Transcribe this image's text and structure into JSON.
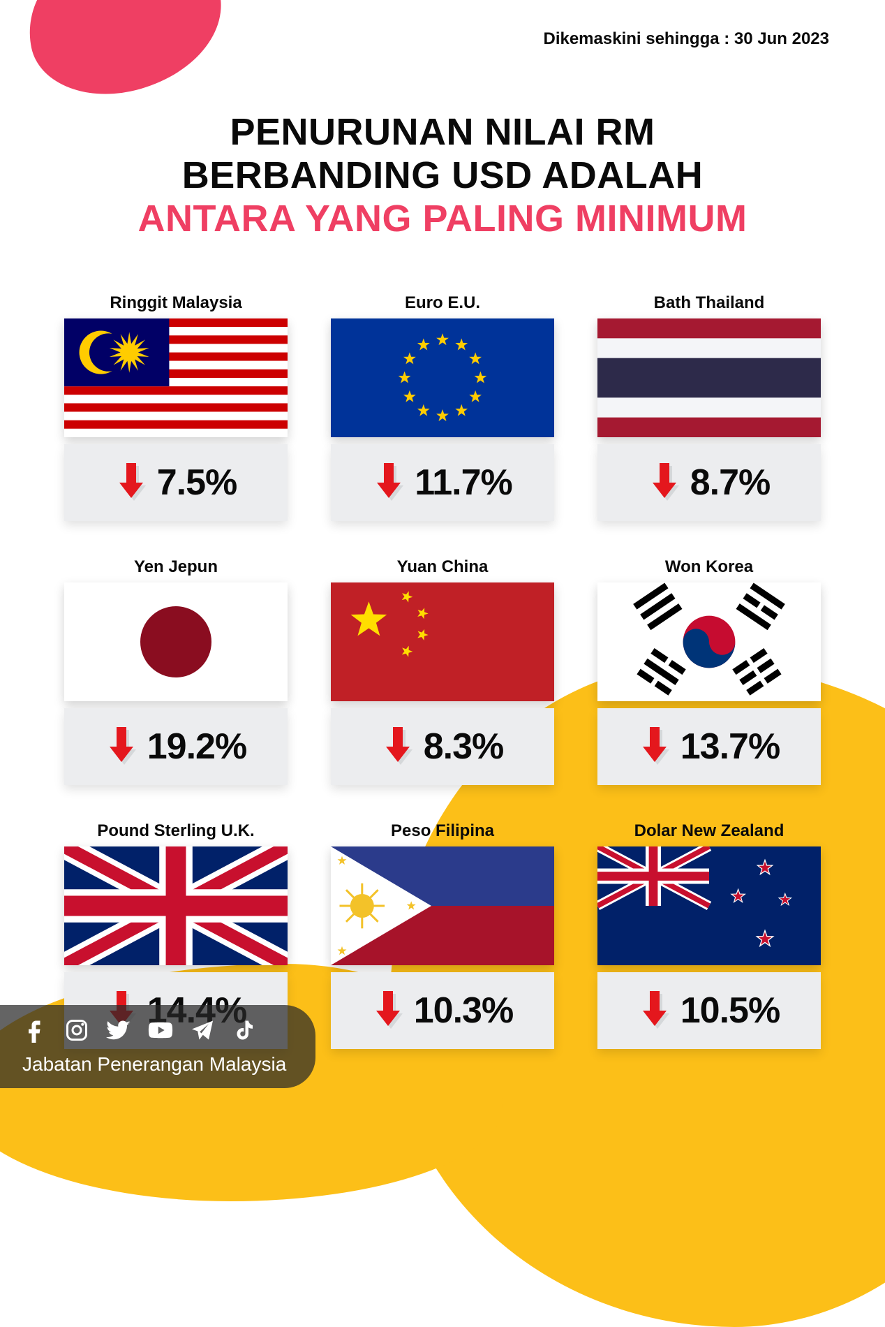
{
  "meta": {
    "update_label": "Dikemaskini sehingga : 30 Jun 2023"
  },
  "headline": {
    "line1": "PENURUNAN NILAI RM",
    "line2": "BERBANDING USD ADALAH",
    "line3": "ANTARA YANG PALING MINIMUM",
    "color_main": "#0a0a0a",
    "color_accent": "#ef3f63",
    "fontsize": 54
  },
  "style": {
    "background": "#ffffff",
    "blob_pink": "#ef3f63",
    "blob_yellow": "#fcbf18",
    "card_metric_bg": "#ecedef",
    "arrow_color": "#e4171d",
    "arrow_shadow": "#c7c9cc",
    "flag_width": 320,
    "flag_height": 170,
    "grid_cols": 3,
    "col_gap": 62,
    "row_gap": 52,
    "label_fontsize": 24,
    "pct_fontsize": 52
  },
  "currencies": [
    {
      "label": "Ringgit Malaysia",
      "pct": "7.5%",
      "flag": "my"
    },
    {
      "label": "Euro E.U.",
      "pct": "11.7%",
      "flag": "eu"
    },
    {
      "label": "Bath Thailand",
      "pct": "8.7%",
      "flag": "th"
    },
    {
      "label": "Yen Jepun",
      "pct": "19.2%",
      "flag": "jp"
    },
    {
      "label": "Yuan China",
      "pct": "8.3%",
      "flag": "cn"
    },
    {
      "label": "Won Korea",
      "pct": "13.7%",
      "flag": "kr"
    },
    {
      "label": "Pound Sterling U.K.",
      "pct": "14.4%",
      "flag": "uk"
    },
    {
      "label": "Peso Filipina",
      "pct": "10.3%",
      "flag": "ph"
    },
    {
      "label": "Dolar New Zealand",
      "pct": "10.5%",
      "flag": "nz"
    }
  ],
  "footer": {
    "org": "Jabatan Penerangan Malaysia",
    "socials": [
      "facebook",
      "instagram",
      "twitter",
      "youtube",
      "telegram",
      "tiktok"
    ]
  }
}
